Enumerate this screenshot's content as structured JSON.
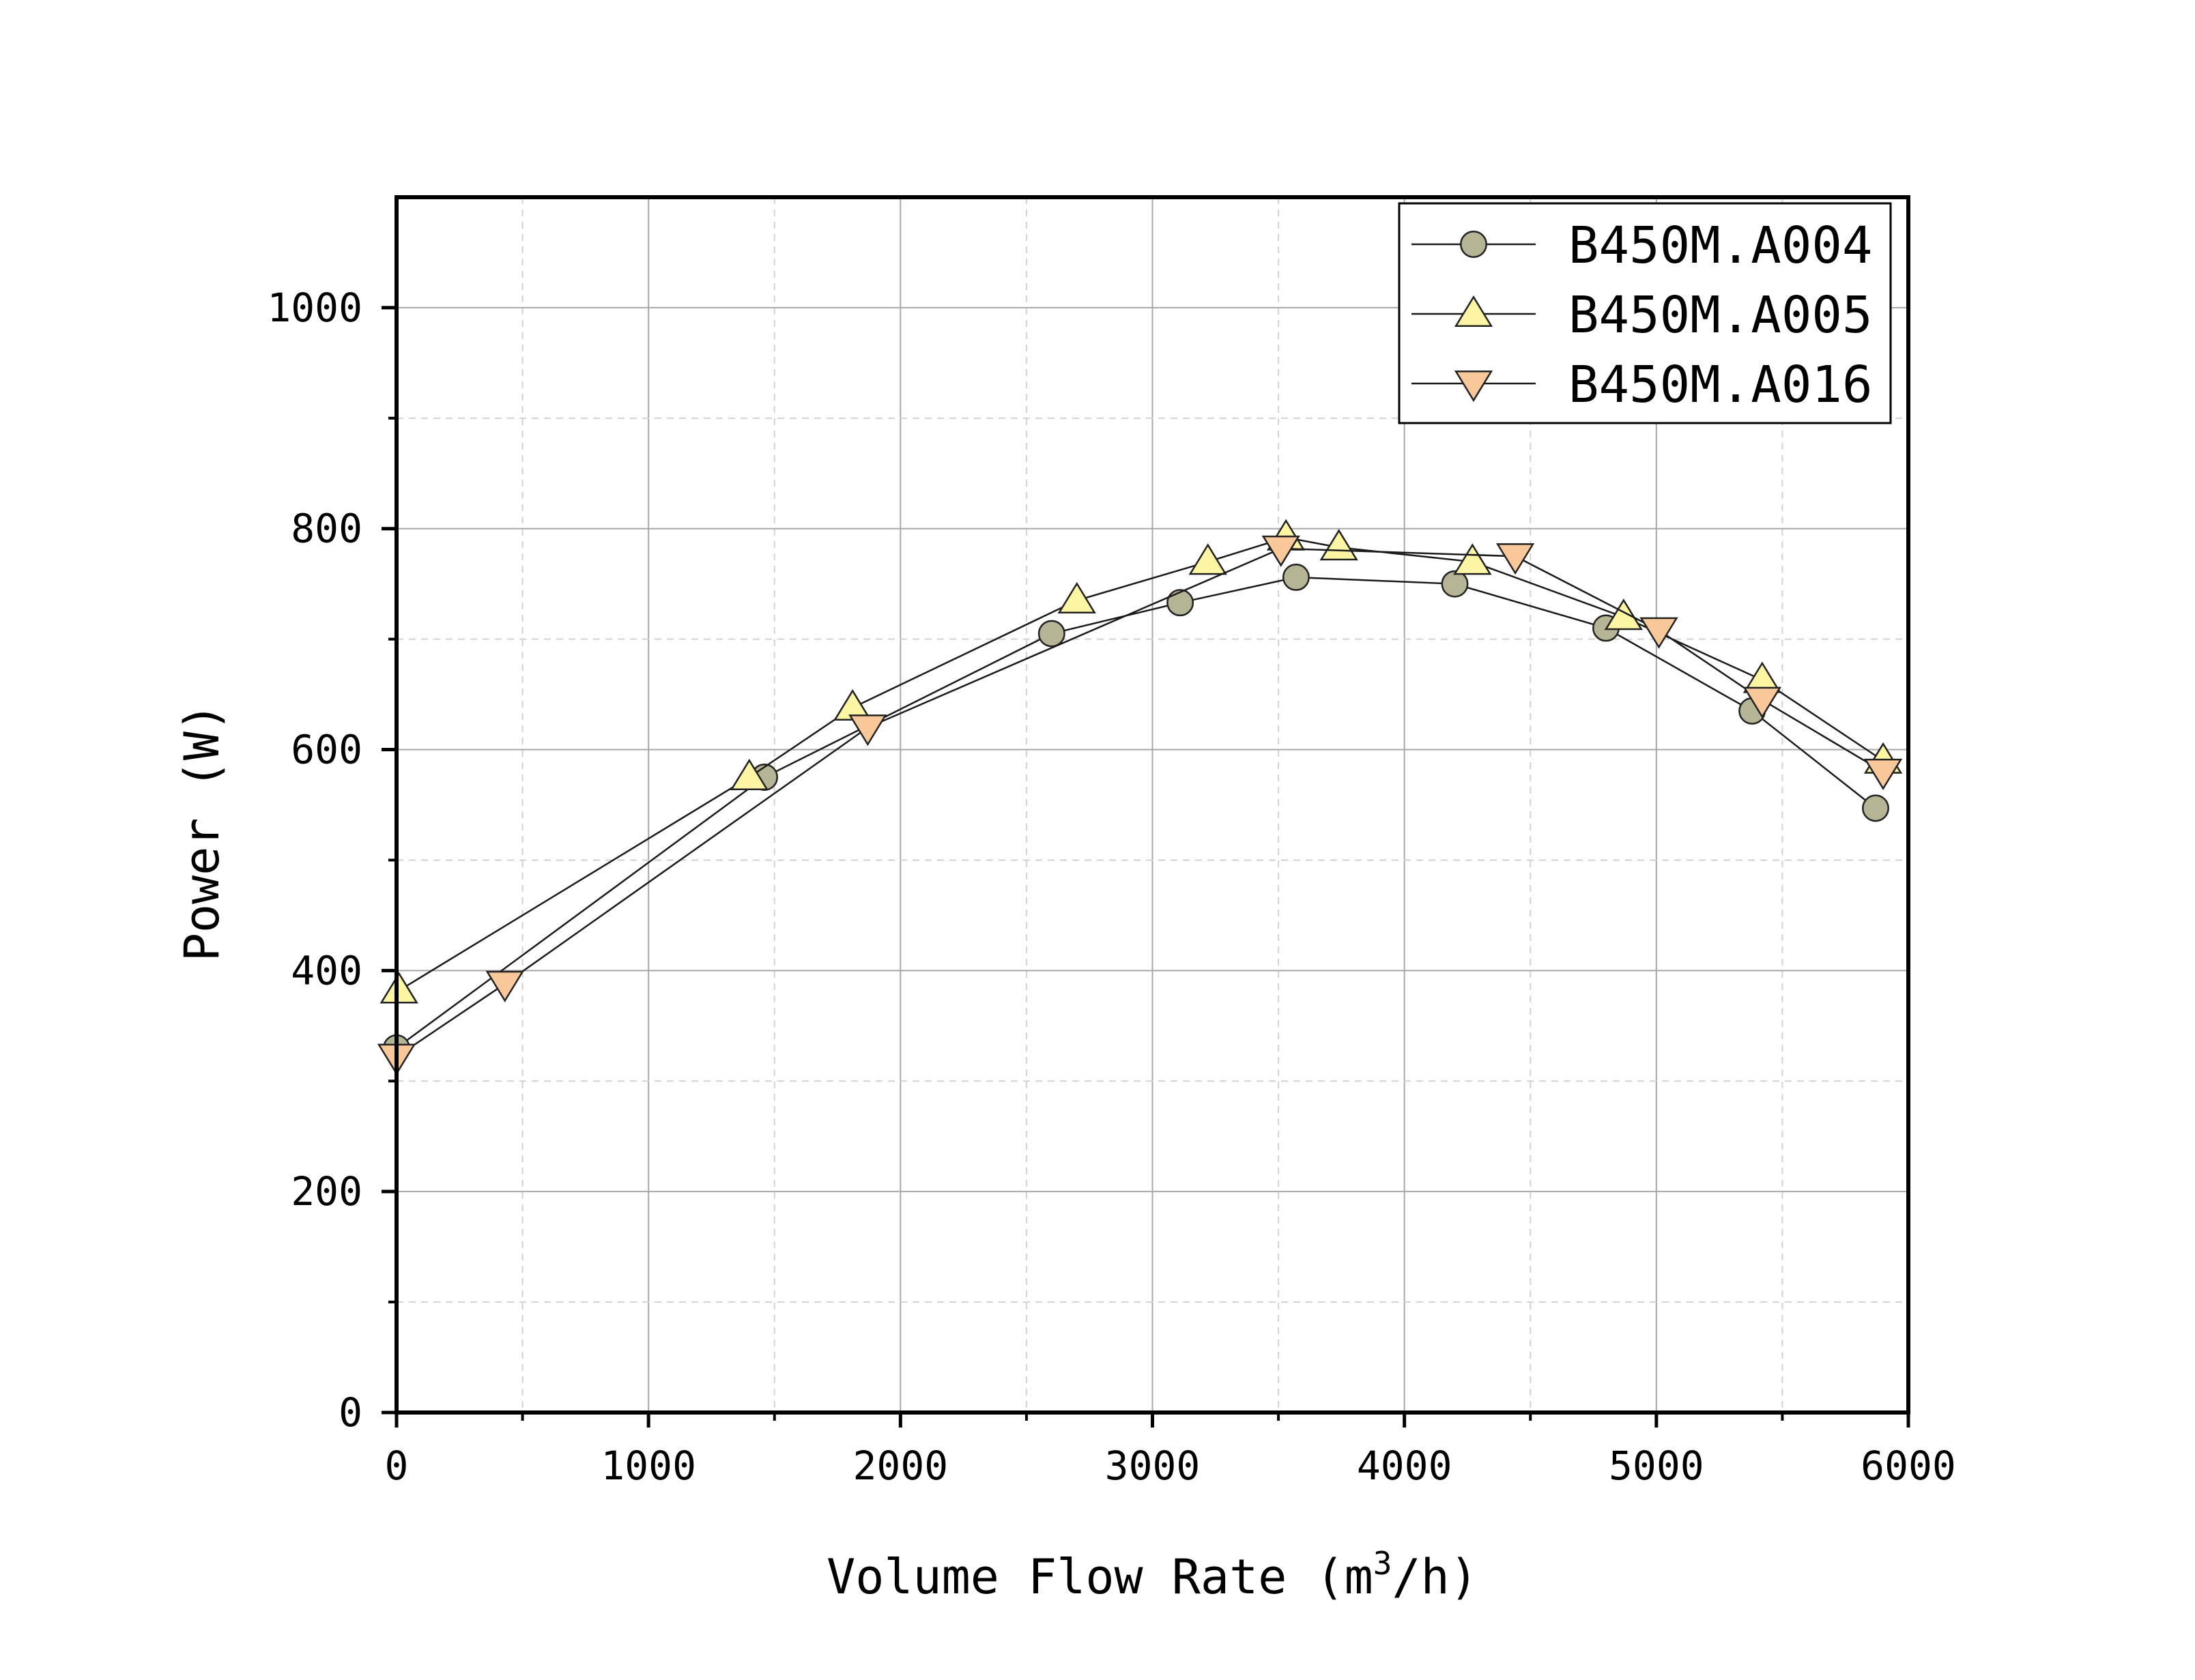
{
  "chart_data": {
    "type": "line",
    "title": "",
    "xlabel": "Volume Flow Rate (m",
    "xlabel_sup": "3",
    "xlabel_tail": "/h)",
    "ylabel": "Power (W)",
    "xlim": [
      0,
      6000
    ],
    "ylim": [
      0,
      1100
    ],
    "x_ticks": [
      0,
      1000,
      2000,
      3000,
      4000,
      5000,
      6000
    ],
    "x_tick_labels": [
      "0",
      "1000",
      "2000",
      "3000",
      "4000",
      "5000",
      "6000"
    ],
    "y_ticks": [
      0,
      200,
      400,
      600,
      800,
      1000
    ],
    "y_tick_labels": [
      "0",
      "200",
      "400",
      "600",
      "800",
      "1000"
    ],
    "grid": true,
    "legend_position": "top-right",
    "series": [
      {
        "name": "B450M.A004",
        "marker": "circle",
        "color": "#b5b596",
        "x": [
          0,
          1460,
          2600,
          3110,
          3570,
          4200,
          4800,
          5380,
          5870
        ],
        "y": [
          330,
          575,
          705,
          733,
          756,
          750,
          710,
          635,
          547
        ]
      },
      {
        "name": "B450M.A005",
        "marker": "triangle-up",
        "color": "#fbf5a4",
        "x": [
          10,
          1400,
          1810,
          2700,
          3220,
          3530,
          3740,
          4270,
          4870,
          5420,
          5900
        ],
        "y": [
          382,
          575,
          638,
          735,
          770,
          792,
          783,
          770,
          720,
          663,
          590
        ]
      },
      {
        "name": "B450M.A016",
        "marker": "triangle-down",
        "color": "#f9c89a",
        "x": [
          0,
          430,
          1870,
          3510,
          4440,
          5010,
          5420,
          5900
        ],
        "y": [
          322,
          388,
          620,
          782,
          775,
          708,
          645,
          580
        ]
      }
    ]
  }
}
